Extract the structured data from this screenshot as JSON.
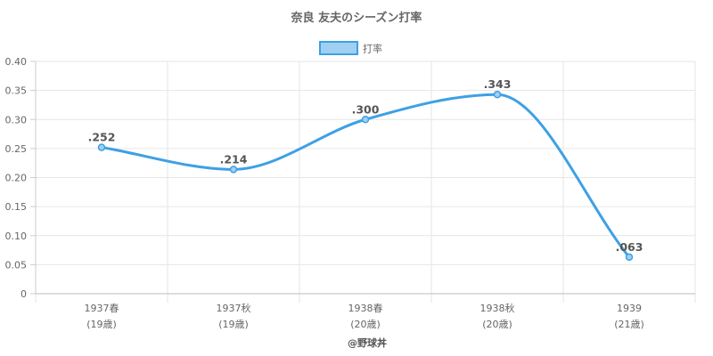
{
  "chart_data": {
    "type": "line",
    "title": "奈良 友夫のシーズン打率",
    "categories": [
      {
        "top": "1937春",
        "bottom": "(19歳)"
      },
      {
        "top": "1937秋",
        "bottom": "(19歳)"
      },
      {
        "top": "1938春",
        "bottom": "(20歳)"
      },
      {
        "top": "1938秋",
        "bottom": "(20歳)"
      },
      {
        "top": "1939",
        "bottom": "(21歳)"
      }
    ],
    "series": [
      {
        "name": "打率",
        "values": [
          0.252,
          0.214,
          0.3,
          0.343,
          0.063
        ],
        "labels": [
          ".252",
          ".214",
          ".300",
          ".343",
          ".063"
        ],
        "color": "#3ea0e4",
        "fill_color": "#9fd0f2"
      }
    ],
    "yticks": [
      "0",
      "0.05",
      "0.10",
      "0.15",
      "0.20",
      "0.25",
      "0.30",
      "0.35",
      "0.40"
    ],
    "ylim": [
      0,
      0.4
    ],
    "grid": true,
    "legend_position": "top-center",
    "footer": "@野球丼"
  }
}
